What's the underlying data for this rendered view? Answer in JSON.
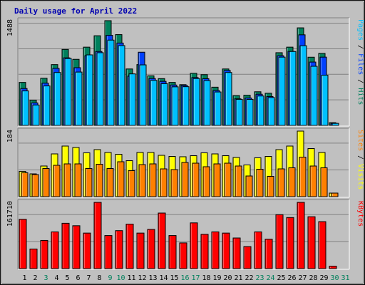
{
  "chart_data": {
    "type": "bar",
    "title": "Daily usage for April 2022",
    "days": [
      "1",
      "2",
      "3",
      "4",
      "5",
      "6",
      "7",
      "8",
      "9",
      "10",
      "11",
      "12",
      "13",
      "14",
      "15",
      "16",
      "17",
      "18",
      "19",
      "20",
      "21",
      "22",
      "23",
      "24",
      "25",
      "26",
      "27",
      "28",
      "29",
      "30",
      "31"
    ],
    "weekend_days": [
      3,
      9,
      10,
      16,
      17,
      23,
      24,
      30,
      31
    ],
    "panels": [
      {
        "name": "hits_files_pages",
        "ymax_label": "1488",
        "ymax": 1488,
        "legend": [
          {
            "text": "Pages",
            "color": "#00c0ff"
          },
          {
            "text": " / ",
            "color": "#000000"
          },
          {
            "text": "Files",
            "color": "#0040ff"
          },
          {
            "text": " / ",
            "color": "#000000"
          },
          {
            "text": "Hits",
            "color": "#00805c"
          }
        ],
        "series": [
          {
            "name": "Hits",
            "color": "#00805c",
            "values": [
              611,
              359,
              670,
              864,
              1080,
              939,
              1112,
              1274,
              1488,
              1290,
              802,
              864,
              705,
              665,
              611,
              579,
              740,
              721,
              543,
              802,
              424,
              429,
              478,
              457,
              1033,
              1112,
              1386,
              969,
              1023,
              39,
              0
            ]
          },
          {
            "name": "Files",
            "color": "#0040ff",
            "values": [
              524,
              320,
              600,
              810,
              960,
              820,
              990,
              1050,
              1280,
              1170,
              700,
              1040,
              666,
              626,
              574,
              567,
              680,
              663,
              495,
              781,
              378,
              389,
              443,
              410,
              990,
              1052,
              1287,
              900,
              970,
              29,
              0
            ]
          },
          {
            "name": "Pages",
            "color": "#00c0ff",
            "values": [
              490,
              290,
              561,
              752,
              950,
              758,
              1002,
              1033,
              1212,
              1134,
              732,
              860,
              640,
              593,
              548,
              550,
              666,
              637,
              475,
              752,
              370,
              370,
              418,
              396,
              970,
              1050,
              1132,
              840,
              714,
              29,
              0
            ]
          }
        ]
      },
      {
        "name": "visits_sites",
        "ymax_label": "184",
        "ymax": 184,
        "legend": [
          {
            "text": "Sites",
            "color": "#ff8000"
          },
          {
            "text": " / ",
            "color": "#000000"
          },
          {
            "text": "Visits",
            "color": "#ffff00"
          }
        ],
        "series": [
          {
            "name": "Visits",
            "color": "#ffff00",
            "values": [
              71,
              64,
              86,
              120,
              142,
              138,
              123,
              132,
              124,
              119,
              101,
              124,
              124,
              116,
              113,
              112,
              115,
              123,
              120,
              115,
              110,
              89,
              109,
              113,
              132,
              142,
              184,
              135,
              124,
              10,
              0
            ]
          },
          {
            "name": "Sites",
            "color": "#ff8000",
            "values": [
              67,
              62,
              79,
              88,
              92,
              92,
              79,
              91,
              79,
              98,
              73,
              90,
              92,
              78,
              76,
              96,
              94,
              84,
              92,
              94,
              86,
              58,
              77,
              57,
              78,
              81,
              111,
              86,
              81,
              10,
              0
            ]
          }
        ]
      },
      {
        "name": "kbytes",
        "ymax_label": "161710",
        "ymax": 161710,
        "legend": [
          {
            "text": "KBytes",
            "color": "#ff0000"
          }
        ],
        "series": [
          {
            "name": "KBytes",
            "color": "#ff0000",
            "values": [
              120340,
              47870,
              68800,
              89700,
              110640,
              104650,
              86710,
              161710,
              80700,
              92680,
              108640,
              86710,
              95700,
              135600,
              80700,
              62770,
              111640,
              83710,
              89700,
              86710,
              74740,
              53800,
              89700,
              71770,
              131620,
              124640,
              161710,
              126630,
              114640,
              6000,
              0
            ]
          }
        ]
      }
    ]
  }
}
